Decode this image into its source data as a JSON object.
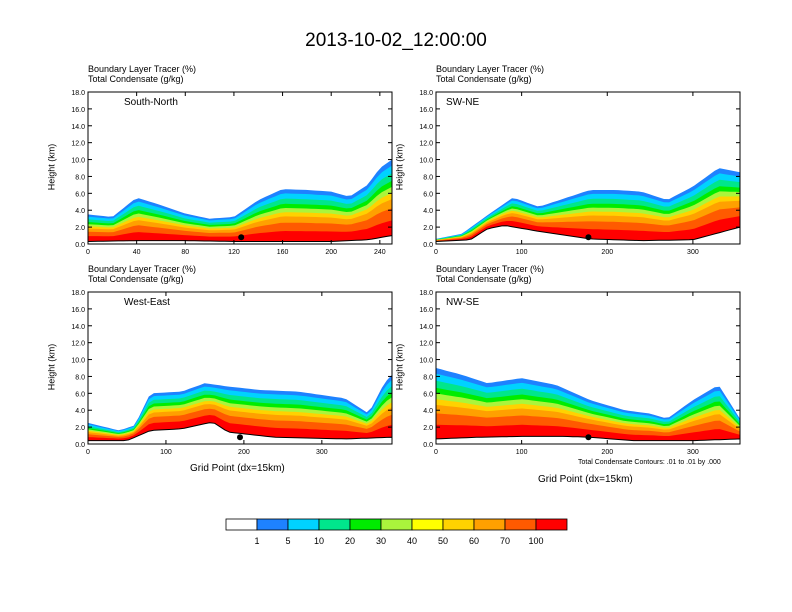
{
  "title": "2013-10-02_12:00:00",
  "header_line1": "Boundary Layer Tracer    (%)",
  "header_line2": "Total Condensate    (g/kg)",
  "ylabel": "Height (km)",
  "xlabel": "Grid Point (dx=15km)",
  "contour_note": "Total Condensate Contours: .01 to .01 by .000",
  "colorbar": {
    "colors": [
      "#ffffff",
      "#1e82ff",
      "#00d2ff",
      "#00e68c",
      "#00ec00",
      "#aaf53c",
      "#ffff00",
      "#ffd200",
      "#ffa000",
      "#ff5a00",
      "#ff0000"
    ],
    "labels": [
      "1",
      "5",
      "10",
      "20",
      "30",
      "40",
      "50",
      "60",
      "70",
      "100"
    ]
  },
  "chart_data": [
    {
      "type": "heatmap",
      "region": "South-North",
      "xticks": [
        "0",
        "40",
        "80",
        "120",
        "160",
        "200",
        "240"
      ],
      "xlim": [
        0,
        250
      ],
      "yticks": [
        "0.0",
        "2.0",
        "4.0",
        "6.0",
        "8.0",
        "10.0",
        "12.0",
        "14.0",
        "16.0",
        "18.0"
      ],
      "ylim": [
        0,
        18
      ],
      "marker_x": 126,
      "tracer_top_km": [
        [
          0,
          3.5
        ],
        [
          20,
          3.2
        ],
        [
          40,
          5.5
        ],
        [
          60,
          4.6
        ],
        [
          80,
          3.6
        ],
        [
          100,
          3.0
        ],
        [
          120,
          3.2
        ],
        [
          140,
          5.2
        ],
        [
          160,
          6.5
        ],
        [
          180,
          6.4
        ],
        [
          200,
          6.2
        ],
        [
          215,
          5.6
        ],
        [
          230,
          7.0
        ],
        [
          240,
          9.0
        ],
        [
          250,
          10.0
        ]
      ],
      "terrain_km": [
        [
          0,
          0.3
        ],
        [
          40,
          0.4
        ],
        [
          80,
          0.4
        ],
        [
          120,
          0.3
        ],
        [
          160,
          0.3
        ],
        [
          200,
          0.3
        ],
        [
          230,
          0.5
        ],
        [
          250,
          1.0
        ]
      ]
    },
    {
      "type": "heatmap",
      "region": "SW-NE",
      "xticks": [
        "0",
        "100",
        "200",
        "300"
      ],
      "xlim": [
        0,
        355
      ],
      "yticks": [
        "0.0",
        "2.0",
        "4.0",
        "6.0",
        "8.0",
        "10.0",
        "12.0",
        "14.0",
        "16.0",
        "18.0"
      ],
      "ylim": [
        0,
        18
      ],
      "marker_x": 178,
      "tracer_top_km": [
        [
          0,
          0.6
        ],
        [
          30,
          1.2
        ],
        [
          60,
          3.4
        ],
        [
          90,
          5.5
        ],
        [
          120,
          4.4
        ],
        [
          150,
          5.4
        ],
        [
          180,
          6.4
        ],
        [
          210,
          6.4
        ],
        [
          240,
          6.2
        ],
        [
          270,
          5.2
        ],
        [
          300,
          6.8
        ],
        [
          330,
          9.0
        ],
        [
          355,
          8.5
        ]
      ],
      "terrain_km": [
        [
          0,
          0.3
        ],
        [
          40,
          0.5
        ],
        [
          60,
          1.8
        ],
        [
          80,
          2.2
        ],
        [
          120,
          1.5
        ],
        [
          180,
          0.6
        ],
        [
          240,
          0.4
        ],
        [
          300,
          0.5
        ],
        [
          355,
          2.0
        ]
      ]
    },
    {
      "type": "heatmap",
      "region": "West-East",
      "xticks": [
        "0",
        "100",
        "200",
        "300"
      ],
      "xlim": [
        0,
        390
      ],
      "yticks": [
        "0.0",
        "2.0",
        "4.0",
        "6.0",
        "8.0",
        "10.0",
        "12.0",
        "14.0",
        "16.0",
        "18.0"
      ],
      "ylim": [
        0,
        18
      ],
      "marker_x": 195,
      "tracer_top_km": [
        [
          0,
          2.5
        ],
        [
          40,
          1.6
        ],
        [
          60,
          2.2
        ],
        [
          80,
          6.0
        ],
        [
          120,
          6.2
        ],
        [
          150,
          7.2
        ],
        [
          180,
          6.8
        ],
        [
          220,
          6.4
        ],
        [
          270,
          6.2
        ],
        [
          330,
          5.4
        ],
        [
          360,
          3.6
        ],
        [
          380,
          7.2
        ],
        [
          390,
          8.2
        ]
      ],
      "terrain_km": [
        [
          0,
          0.4
        ],
        [
          50,
          0.4
        ],
        [
          80,
          1.6
        ],
        [
          120,
          1.8
        ],
        [
          160,
          2.6
        ],
        [
          180,
          1.4
        ],
        [
          240,
          0.8
        ],
        [
          330,
          0.6
        ],
        [
          390,
          0.8
        ]
      ]
    },
    {
      "type": "heatmap",
      "region": "NW-SE",
      "xticks": [
        "0",
        "100",
        "200",
        "300"
      ],
      "xlim": [
        0,
        355
      ],
      "yticks": [
        "0.0",
        "2.0",
        "4.0",
        "6.0",
        "8.0",
        "10.0",
        "12.0",
        "14.0",
        "16.0",
        "18.0"
      ],
      "ylim": [
        0,
        18
      ],
      "marker_x": 178,
      "tracer_top_km": [
        [
          0,
          9.0
        ],
        [
          30,
          8.2
        ],
        [
          60,
          7.2
        ],
        [
          100,
          7.8
        ],
        [
          140,
          7.0
        ],
        [
          180,
          5.2
        ],
        [
          220,
          4.0
        ],
        [
          250,
          3.6
        ],
        [
          270,
          3.0
        ],
        [
          300,
          5.2
        ],
        [
          330,
          7.0
        ],
        [
          355,
          3.0
        ]
      ],
      "terrain_km": [
        [
          0,
          0.6
        ],
        [
          50,
          0.8
        ],
        [
          100,
          0.9
        ],
        [
          150,
          0.9
        ],
        [
          180,
          0.8
        ],
        [
          230,
          0.4
        ],
        [
          300,
          0.4
        ],
        [
          355,
          0.6
        ]
      ]
    }
  ]
}
